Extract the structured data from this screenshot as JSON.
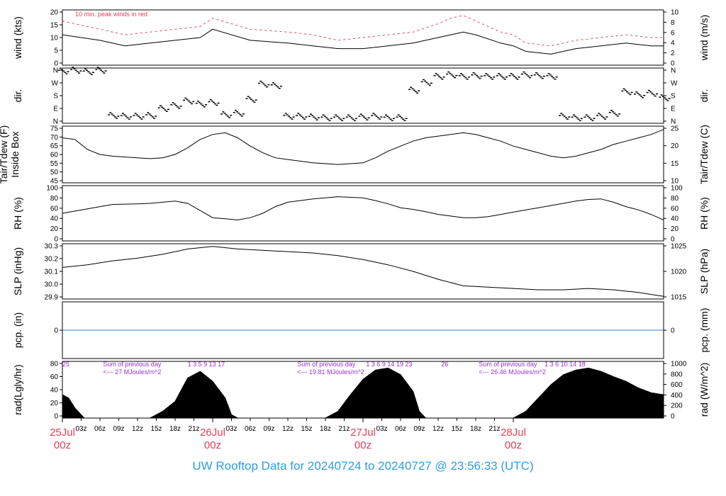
{
  "footer": "UW Rooftop Data for 20240724  to  20240727 @ 23:56:33  (UTC)",
  "colors": {
    "accent": "#e0405a",
    "purple": "#9b30d6",
    "blue": "#2e9ee0",
    "zero_line": "#3a78c8",
    "trace": "#000000"
  },
  "chart_data": [
    {
      "type": "line",
      "title": "",
      "annotation": "10 min. peak winds in red",
      "ylabel_left": "wind (kts)",
      "ylabel_right": "wind (m/s)",
      "ylim": [
        0,
        20
      ],
      "yticks_left": [
        "0",
        "5",
        "10",
        "15",
        "20"
      ],
      "yticks_right": [
        "0",
        "2",
        "4",
        "6",
        "8",
        "10"
      ],
      "series": [
        {
          "x": [
            0,
            6,
            10,
            14,
            18,
            22,
            24,
            30,
            36,
            40,
            44,
            48,
            52,
            56,
            60,
            62,
            64,
            66,
            70,
            72,
            74,
            78,
            82,
            86,
            90,
            94,
            96
          ],
          "values": [
            11,
            9,
            7,
            8,
            9,
            10,
            13,
            9,
            8,
            7,
            6,
            6,
            7,
            8,
            10,
            11,
            12,
            11,
            8,
            7,
            5,
            4,
            6,
            7,
            8,
            7,
            7
          ]
        },
        {
          "x": [
            0,
            6,
            10,
            14,
            18,
            22,
            24,
            30,
            36,
            40,
            44,
            48,
            52,
            56,
            60,
            62,
            64,
            66,
            70,
            72,
            74,
            78,
            82,
            86,
            90,
            94,
            96
          ],
          "values": [
            16,
            13,
            11,
            12,
            13,
            14,
            17,
            13,
            12,
            11,
            9,
            10,
            11,
            12,
            15,
            17,
            18,
            16,
            12,
            11,
            8,
            7,
            9,
            10,
            11,
            10,
            10
          ]
        }
      ]
    },
    {
      "type": "scatter",
      "ylabel_left": "dir.",
      "ylabel_right": "dir.",
      "ylim": [
        0,
        360
      ],
      "yticks_left": [
        "N",
        "E",
        "S",
        "W",
        "N"
      ],
      "yticks_right": [
        "N",
        "E",
        "S",
        "W",
        "N"
      ],
      "series": [
        {
          "x": [
            0,
            2,
            4,
            6,
            8,
            10,
            12,
            14,
            16,
            18,
            20,
            22,
            24,
            26,
            28,
            30,
            32,
            34,
            36,
            38,
            40,
            42,
            44,
            46,
            48,
            50,
            52,
            54,
            56,
            58,
            60,
            62,
            64,
            66,
            68,
            70,
            72,
            74,
            76,
            78,
            80,
            82,
            84,
            86,
            88,
            90,
            92,
            94,
            96
          ],
          "values": [
            335,
            340,
            330,
            340,
            45,
            40,
            40,
            45,
            90,
            110,
            140,
            120,
            130,
            50,
            60,
            150,
            250,
            240,
            40,
            40,
            35,
            30,
            30,
            30,
            35,
            40,
            30,
            30,
            210,
            260,
            300,
            310,
            300,
            305,
            300,
            300,
            300,
            310,
            305,
            300,
            40,
            30,
            30,
            40,
            60,
            200,
            180,
            190,
            160
          ]
        }
      ]
    },
    {
      "type": "line",
      "ylabel_left": "Tair/Tdew (F)\nInside Box",
      "ylabel_right": "Tair/Tdew (C)",
      "ylim": [
        45,
        79
      ],
      "yticks_left": [
        "45",
        "50",
        "55",
        "60",
        "65",
        "70",
        "75"
      ],
      "yticks_right": [
        "10",
        "15",
        "20",
        "25"
      ],
      "series": [
        {
          "x": [
            0,
            2,
            4,
            6,
            8,
            12,
            14,
            16,
            18,
            20,
            22,
            24,
            26,
            28,
            30,
            32,
            34,
            36,
            40,
            44,
            48,
            50,
            52,
            54,
            56,
            58,
            60,
            62,
            64,
            66,
            68,
            70,
            72,
            74,
            76,
            78,
            80,
            82,
            84,
            86,
            88,
            90,
            92,
            94,
            96
          ],
          "values": [
            72,
            71,
            65,
            62,
            61,
            60,
            59.5,
            60,
            62,
            66,
            71,
            74,
            75,
            72,
            67,
            63,
            60,
            59,
            57,
            56,
            57,
            60,
            64,
            67,
            70,
            72,
            73,
            74,
            75,
            74,
            72,
            70,
            67,
            65,
            63,
            61,
            60,
            61,
            63,
            65,
            68,
            70,
            72,
            74,
            77
          ]
        }
      ]
    },
    {
      "type": "line",
      "ylabel_left": "RH (%)",
      "ylabel_right": "RH (%)",
      "ylim": [
        0,
        100
      ],
      "yticks_left": [
        "0",
        "20",
        "40",
        "60",
        "80",
        "100"
      ],
      "yticks_right": [
        "0",
        "20",
        "40",
        "60",
        "80",
        "100"
      ],
      "series": [
        {
          "x": [
            0,
            2,
            4,
            6,
            8,
            12,
            14,
            16,
            18,
            20,
            22,
            24,
            26,
            28,
            30,
            32,
            34,
            36,
            40,
            44,
            48,
            50,
            52,
            54,
            56,
            58,
            60,
            62,
            64,
            66,
            68,
            70,
            72,
            74,
            76,
            78,
            80,
            82,
            84,
            86,
            88,
            90,
            92,
            94,
            96
          ],
          "values": [
            50,
            54,
            58,
            62,
            66,
            67,
            68,
            70,
            72,
            68,
            55,
            42,
            40,
            38,
            42,
            50,
            62,
            70,
            76,
            80,
            78,
            73,
            67,
            60,
            57,
            53,
            48,
            45,
            42,
            42,
            44,
            48,
            52,
            56,
            60,
            64,
            68,
            72,
            75,
            76,
            70,
            62,
            56,
            48,
            38
          ]
        }
      ]
    },
    {
      "type": "line",
      "ylabel_left": "SLP (inHg)",
      "ylabel_right": "SLP (hPa)",
      "ylim": [
        29.9,
        30.32
      ],
      "yticks_left": [
        "29.9",
        "30.0",
        "30.1",
        "30.2",
        "30.3"
      ],
      "yticks_right": [
        "1015",
        "1020",
        "1025"
      ],
      "series": [
        {
          "x": [
            0,
            4,
            8,
            12,
            16,
            20,
            24,
            28,
            32,
            36,
            40,
            44,
            48,
            52,
            56,
            60,
            64,
            68,
            72,
            76,
            80,
            84,
            88,
            92,
            96
          ],
          "values": [
            30.14,
            30.16,
            30.19,
            30.21,
            30.24,
            30.28,
            30.3,
            30.28,
            30.27,
            30.26,
            30.25,
            30.23,
            30.2,
            30.16,
            30.11,
            30.05,
            30.0,
            29.99,
            29.98,
            29.97,
            29.97,
            29.98,
            29.97,
            29.95,
            29.92
          ]
        }
      ]
    },
    {
      "type": "line",
      "ylabel_left": "pcp. (in)",
      "ylabel_right": "pcp. (mm)",
      "yticks_left": [
        "0"
      ],
      "yticks_right": [
        "0"
      ],
      "series": [
        {
          "x": [
            0,
            96
          ],
          "values": [
            0,
            0
          ]
        }
      ]
    },
    {
      "type": "area",
      "ylabel_left": "rad(Lgly/hr)",
      "ylabel_right": "rad (W/m^2)",
      "ylim": [
        0,
        85
      ],
      "yticks_left": [
        "0",
        "20",
        "40",
        "60",
        "80"
      ],
      "yticks_right": [
        "0",
        "200",
        "400",
        "600",
        "800",
        "1000"
      ],
      "hour_labels": [
        {
          "x": 0,
          "text": "25"
        },
        {
          "x": 20,
          "text": "1 3 5 9 13 17"
        },
        {
          "x": 48.5,
          "text": "1 3 6 9 14 19 23"
        },
        {
          "x": 60.5,
          "text": "26"
        },
        {
          "x": 77,
          "text": "1 3 6 10 14 18"
        }
      ],
      "daily_totals": [
        {
          "x": 6.5,
          "label": "Sum of previous day",
          "value": "<--- 27 MJoules/m^2"
        },
        {
          "x": 37.5,
          "label": "Sum of previous day",
          "value": "<--- 19.81 MJoules/m^2"
        },
        {
          "x": 66.5,
          "label": "Sum of previous day",
          "value": "<--- 26.46 MJoules/m^2"
        }
      ],
      "series": [
        {
          "x": [
            0,
            1,
            2,
            3,
            3.5,
            14,
            16,
            18,
            20,
            22,
            24,
            26,
            27,
            28,
            42,
            44,
            46,
            48,
            50,
            52,
            54,
            56,
            57,
            58,
            72,
            74,
            76,
            78,
            80,
            82,
            84,
            86,
            88,
            90,
            92,
            94,
            96
          ],
          "values": [
            35,
            30,
            15,
            5,
            0,
            0,
            10,
            25,
            60,
            70,
            55,
            30,
            5,
            0,
            0,
            10,
            35,
            58,
            72,
            75,
            65,
            40,
            10,
            0,
            0,
            10,
            30,
            50,
            65,
            72,
            75,
            70,
            62,
            55,
            45,
            38,
            35
          ]
        }
      ]
    }
  ],
  "x_axis": {
    "range_hours": [
      0,
      96
    ],
    "hour_ticks": [
      "03z",
      "06z",
      "09z",
      "12z",
      "15z",
      "18z",
      "21z",
      "03z",
      "06z",
      "09z",
      "12z",
      "15z",
      "18z",
      "21z",
      "03z",
      "06z",
      "09z",
      "12z",
      "15z",
      "18z",
      "21z"
    ],
    "hour_tick_values": [
      3,
      6,
      9,
      12,
      15,
      18,
      21,
      27,
      30,
      33,
      36,
      39,
      42,
      45,
      51,
      54,
      57,
      60,
      63,
      66,
      69
    ],
    "day_labels": [
      {
        "date": "25Jul",
        "time": "00z",
        "x": 0
      },
      {
        "date": "26Jul",
        "time": "00z",
        "x": 24
      },
      {
        "date": "27Jul",
        "time": "00z",
        "x": 48
      },
      {
        "date": "28Jul",
        "time": "00z",
        "x": 72
      }
    ]
  }
}
